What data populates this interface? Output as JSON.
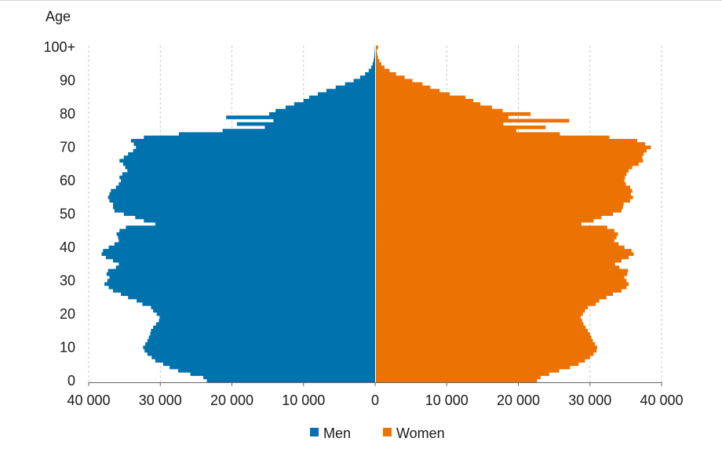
{
  "chart_data": {
    "type": "bar",
    "orientation": "horizontal",
    "layout": "population-pyramid",
    "ylabel": "Age",
    "x_tick_labels": [
      "40 000",
      "30 000",
      "20 000",
      "10 000",
      "0",
      "10 000",
      "20 000",
      "30 000",
      "40 000"
    ],
    "y_tick_labels": [
      "0",
      "10",
      "20",
      "30",
      "40",
      "50",
      "60",
      "70",
      "80",
      "90",
      "100+"
    ],
    "xlim": [
      -40000,
      40000
    ],
    "ylim": [
      0,
      100
    ],
    "grid": true,
    "legend_position": "bottom-center",
    "colors": {
      "men": "#0073ae",
      "women": "#eb7203"
    },
    "ages": [
      0,
      1,
      2,
      3,
      4,
      5,
      6,
      7,
      8,
      9,
      10,
      11,
      12,
      13,
      14,
      15,
      16,
      17,
      18,
      19,
      20,
      21,
      22,
      23,
      24,
      25,
      26,
      27,
      28,
      29,
      30,
      31,
      32,
      33,
      34,
      35,
      36,
      37,
      38,
      39,
      40,
      41,
      42,
      43,
      44,
      45,
      46,
      47,
      48,
      49,
      50,
      51,
      52,
      53,
      54,
      55,
      56,
      57,
      58,
      59,
      60,
      61,
      62,
      63,
      64,
      65,
      66,
      67,
      68,
      69,
      70,
      71,
      72,
      73,
      74,
      75,
      76,
      77,
      78,
      79,
      80,
      81,
      82,
      83,
      84,
      85,
      86,
      87,
      88,
      89,
      90,
      91,
      92,
      93,
      94,
      95,
      96,
      97,
      98,
      99,
      100
    ],
    "series": [
      {
        "name": "Men",
        "values": [
          23500,
          24000,
          25800,
          27500,
          28700,
          29600,
          30700,
          31200,
          31800,
          32200,
          32400,
          32100,
          31800,
          31600,
          31400,
          31300,
          31000,
          30600,
          30200,
          30100,
          30500,
          31000,
          31300,
          32500,
          33300,
          34500,
          35500,
          36600,
          37200,
          37800,
          37400,
          37100,
          37500,
          37300,
          36200,
          35800,
          36600,
          37600,
          38200,
          38000,
          37200,
          36400,
          35800,
          35900,
          36100,
          35700,
          34800,
          30700,
          32300,
          33500,
          35100,
          36400,
          36600,
          36600,
          37100,
          37300,
          37100,
          36900,
          36200,
          35800,
          35500,
          35700,
          35300,
          34600,
          34900,
          35200,
          35700,
          35100,
          34500,
          33800,
          33400,
          33700,
          34100,
          32300,
          27400,
          21300,
          15400,
          19300,
          14200,
          20800,
          14800,
          13900,
          12500,
          11300,
          10000,
          9200,
          8000,
          6800,
          5500,
          4200,
          3000,
          2100,
          1400,
          900,
          550,
          350,
          220,
          140,
          90,
          55,
          35
        ]
      },
      {
        "name": "Women",
        "values": [
          22500,
          23000,
          24200,
          25600,
          27100,
          28300,
          29200,
          29900,
          30400,
          30800,
          30900,
          30600,
          30300,
          30100,
          29900,
          29600,
          29300,
          29000,
          28800,
          28600,
          28900,
          29200,
          29600,
          30700,
          31200,
          32200,
          33100,
          34300,
          35000,
          35300,
          35000,
          34700,
          35100,
          35200,
          34000,
          33400,
          34300,
          35300,
          36000,
          35700,
          34700,
          33900,
          33300,
          33600,
          33800,
          33300,
          32300,
          28700,
          30400,
          31500,
          33100,
          34300,
          34500,
          34600,
          35500,
          35900,
          35600,
          35800,
          35500,
          34900,
          34700,
          34800,
          35000,
          35300,
          35800,
          36700,
          37300,
          37200,
          37400,
          37800,
          38400,
          37600,
          36500,
          32600,
          25700,
          19600,
          23700,
          17800,
          27000,
          18500,
          21600,
          17700,
          16200,
          14600,
          13600,
          12500,
          10300,
          8900,
          7600,
          6500,
          5100,
          4000,
          2800,
          1900,
          1200,
          750,
          470,
          290,
          180,
          110,
          300
        ]
      }
    ],
    "legend": [
      "Men",
      "Women"
    ]
  }
}
